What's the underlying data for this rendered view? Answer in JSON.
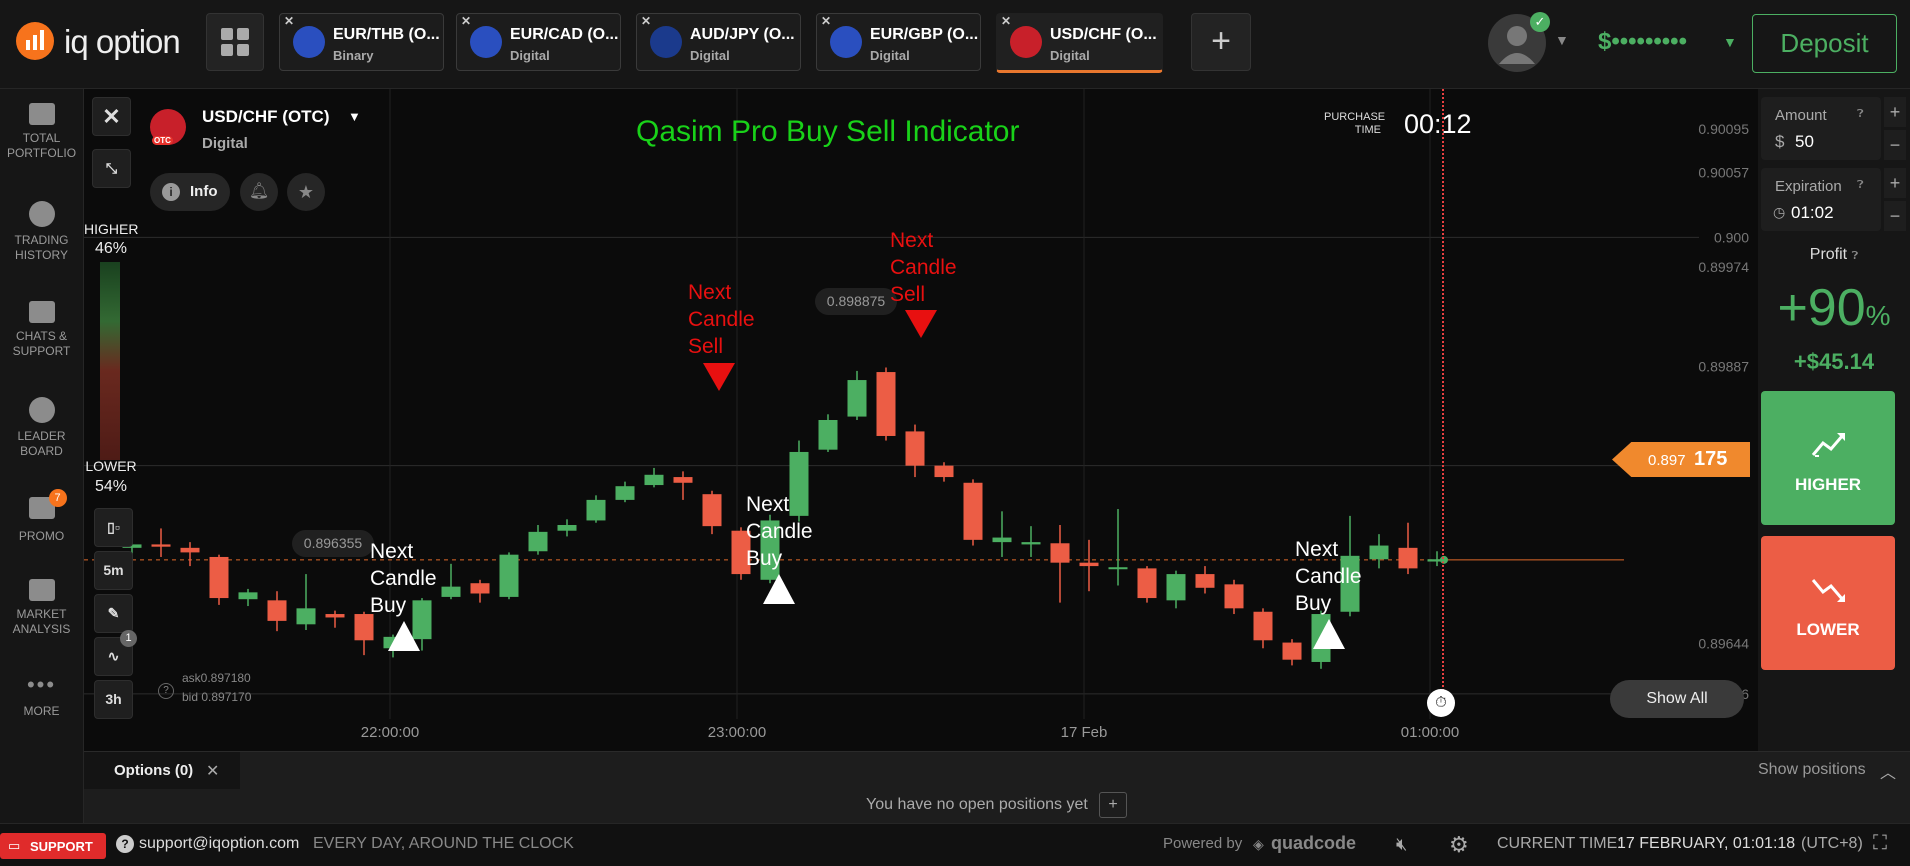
{
  "app": {
    "logo_text": "iq option"
  },
  "tabs": [
    {
      "name": "EUR/THB (O...",
      "type": "Binary"
    },
    {
      "name": "EUR/CAD (O...",
      "type": "Digital"
    },
    {
      "name": "AUD/JPY (O...",
      "type": "Digital"
    },
    {
      "name": "EUR/GBP (O...",
      "type": "Digital"
    },
    {
      "name": "USD/CHF (O...",
      "type": "Digital"
    }
  ],
  "header": {
    "balance": "$•••••••••",
    "deposit_label": "Deposit",
    "add_tab": "+"
  },
  "sidebar": [
    {
      "label1": "TOTAL",
      "label2": "PORTFOLIO"
    },
    {
      "label1": "TRADING",
      "label2": "HISTORY"
    },
    {
      "label1": "CHATS &",
      "label2": "SUPPORT"
    },
    {
      "label1": "LEADER",
      "label2": "BOARD"
    },
    {
      "label1": "PROMO",
      "label2": "",
      "badge": "7"
    },
    {
      "label1": "MARKET",
      "label2": "ANALYSIS"
    },
    {
      "label1": "MORE",
      "label2": ""
    }
  ],
  "asset": {
    "name": "USD/CHF (OTC)",
    "type": "Digital",
    "otc": "OTC",
    "info_label": "Info"
  },
  "indicator_title": "Qasim Pro Buy Sell Indicator",
  "purchase": {
    "label1": "PURCHASE",
    "label2": "TIME",
    "time": "00:12"
  },
  "sentiment": {
    "higher_label": "HIGHER",
    "higher_pct": "46%",
    "lower_label": "LOWER",
    "lower_pct": "54%"
  },
  "toolbar": {
    "timeframe": "5m",
    "period": "3h",
    "indicator_badge": "1"
  },
  "quote": {
    "ask": "ask0.897180",
    "bid": "bid 0.897170"
  },
  "price_scale": [
    "0.90095",
    "0.90057",
    "0.900",
    "0.89974",
    "0.89887",
    "0.898",
    "0.89644",
    "0.896"
  ],
  "current_price": {
    "prefix": "0.897",
    "suffix": "175"
  },
  "time_axis": [
    "22:00:00",
    "23:00:00",
    "17 Feb",
    "01:00:00"
  ],
  "chart_labels": {
    "high_marker": "0.898875",
    "low_marker": "0.896355",
    "buy_text": [
      "Next",
      "Candle",
      "Buy"
    ],
    "sell_text": [
      "Next",
      "Candle",
      "Sell"
    ]
  },
  "show_all": "Show All",
  "trade": {
    "amount_label": "Amount",
    "currency": "$",
    "amount_value": "50",
    "expiration_label": "Expiration",
    "expiration_value": "01:02",
    "profit_label": "Profit",
    "profit_pct": "+90",
    "profit_pct_sign": "%",
    "profit_amount": "+$45.14",
    "higher_button": "HIGHER",
    "lower_button": "LOWER"
  },
  "options_bar": {
    "tab_label": "Options (0)",
    "no_positions": "You have no open positions yet",
    "show_positions": "Show positions"
  },
  "footer": {
    "support_label": "SUPPORT",
    "email": "support@iqoption.com",
    "hours": "EVERY DAY, AROUND THE CLOCK",
    "powered_by": "Powered by",
    "brand": "quadcode",
    "current_time_label": "CURRENT TIME:",
    "current_time_value": "17 FEBRUARY, 01:01:18",
    "tz": "(UTC+8)"
  },
  "colors": {
    "up": "#4caf62",
    "down": "#ec5d45",
    "accent": "#f7731c",
    "title": "#19d219",
    "sell_marker": "#e81010"
  },
  "chart_data": {
    "type": "candlestick",
    "x_ticks": [
      "22:00:00",
      "23:00:00",
      "17 Feb",
      "01:00:00"
    ],
    "y_ticks": [
      0.90095,
      0.90057,
      0.9,
      0.89974,
      0.89887,
      0.898,
      0.89644,
      0.896
    ],
    "ylim": [
      0.8955,
      0.9013
    ],
    "current_price": 0.897175,
    "candles": [
      {
        "o": 0.89728,
        "c": 0.89731,
        "h": 0.8974,
        "l": 0.89715
      },
      {
        "o": 0.89731,
        "c": 0.89729,
        "h": 0.89745,
        "l": 0.8972
      },
      {
        "o": 0.89728,
        "c": 0.89724,
        "h": 0.89733,
        "l": 0.89712
      },
      {
        "o": 0.8972,
        "c": 0.89684,
        "h": 0.89722,
        "l": 0.89678
      },
      {
        "o": 0.89683,
        "c": 0.89689,
        "h": 0.89692,
        "l": 0.89677
      },
      {
        "o": 0.89682,
        "c": 0.89664,
        "h": 0.8969,
        "l": 0.89655
      },
      {
        "o": 0.89661,
        "c": 0.89675,
        "h": 0.89705,
        "l": 0.89656
      },
      {
        "o": 0.8967,
        "c": 0.89667,
        "h": 0.89673,
        "l": 0.89658
      },
      {
        "o": 0.8967,
        "c": 0.89647,
        "h": 0.89672,
        "l": 0.89634
      },
      {
        "o": 0.8964,
        "c": 0.8965,
        "h": 0.89652,
        "l": 0.89632
      },
      {
        "o": 0.89648,
        "c": 0.89682,
        "h": 0.89684,
        "l": 0.89638
      },
      {
        "o": 0.89685,
        "c": 0.89694,
        "h": 0.89714,
        "l": 0.89683
      },
      {
        "o": 0.89697,
        "c": 0.89688,
        "h": 0.897,
        "l": 0.8968
      },
      {
        "o": 0.89685,
        "c": 0.89722,
        "h": 0.89724,
        "l": 0.89683
      },
      {
        "o": 0.89725,
        "c": 0.89742,
        "h": 0.89748,
        "l": 0.89722
      },
      {
        "o": 0.89743,
        "c": 0.89748,
        "h": 0.89753,
        "l": 0.89738
      },
      {
        "o": 0.89752,
        "c": 0.8977,
        "h": 0.89774,
        "l": 0.8975
      },
      {
        "o": 0.8977,
        "c": 0.89782,
        "h": 0.89786,
        "l": 0.89768
      },
      {
        "o": 0.89783,
        "c": 0.89792,
        "h": 0.89798,
        "l": 0.89781
      },
      {
        "o": 0.8979,
        "c": 0.89785,
        "h": 0.89795,
        "l": 0.8977
      },
      {
        "o": 0.89775,
        "c": 0.89747,
        "h": 0.89778,
        "l": 0.8974
      },
      {
        "o": 0.89743,
        "c": 0.89705,
        "h": 0.89746,
        "l": 0.897
      },
      {
        "o": 0.897,
        "c": 0.89752,
        "h": 0.89757,
        "l": 0.89697
      },
      {
        "o": 0.89756,
        "c": 0.89812,
        "h": 0.89822,
        "l": 0.89751
      },
      {
        "o": 0.89814,
        "c": 0.8984,
        "h": 0.89845,
        "l": 0.89812
      },
      {
        "o": 0.89843,
        "c": 0.89875,
        "h": 0.89883,
        "l": 0.8984
      },
      {
        "o": 0.89882,
        "c": 0.89826,
        "h": 0.89886,
        "l": 0.89822
      },
      {
        "o": 0.8983,
        "c": 0.898,
        "h": 0.89836,
        "l": 0.8979
      },
      {
        "o": 0.898,
        "c": 0.8979,
        "h": 0.89803,
        "l": 0.89786
      },
      {
        "o": 0.89785,
        "c": 0.89735,
        "h": 0.89788,
        "l": 0.8973
      },
      {
        "o": 0.89733,
        "c": 0.89737,
        "h": 0.8976,
        "l": 0.8972
      },
      {
        "o": 0.89731,
        "c": 0.89733,
        "h": 0.89747,
        "l": 0.8972
      },
      {
        "o": 0.89732,
        "c": 0.89715,
        "h": 0.89748,
        "l": 0.8968
      },
      {
        "o": 0.89715,
        "c": 0.89712,
        "h": 0.89735,
        "l": 0.8969
      },
      {
        "o": 0.8971,
        "c": 0.89711,
        "h": 0.89762,
        "l": 0.89695
      },
      {
        "o": 0.8971,
        "c": 0.89684,
        "h": 0.89712,
        "l": 0.8968
      },
      {
        "o": 0.89682,
        "c": 0.89705,
        "h": 0.89708,
        "l": 0.89675
      },
      {
        "o": 0.89705,
        "c": 0.89693,
        "h": 0.89712,
        "l": 0.89688
      },
      {
        "o": 0.89696,
        "c": 0.89675,
        "h": 0.897,
        "l": 0.8967
      },
      {
        "o": 0.89672,
        "c": 0.89647,
        "h": 0.89675,
        "l": 0.8964
      },
      {
        "o": 0.89645,
        "c": 0.8963,
        "h": 0.89648,
        "l": 0.89625
      },
      {
        "o": 0.89628,
        "c": 0.8967,
        "h": 0.89673,
        "l": 0.89622
      },
      {
        "o": 0.89672,
        "c": 0.89721,
        "h": 0.89756,
        "l": 0.89668
      },
      {
        "o": 0.89718,
        "c": 0.8973,
        "h": 0.8974,
        "l": 0.8971
      },
      {
        "o": 0.89728,
        "c": 0.8971,
        "h": 0.8975,
        "l": 0.89705
      },
      {
        "o": 0.89716,
        "c": 0.89718,
        "h": 0.89725,
        "l": 0.89712
      }
    ]
  }
}
